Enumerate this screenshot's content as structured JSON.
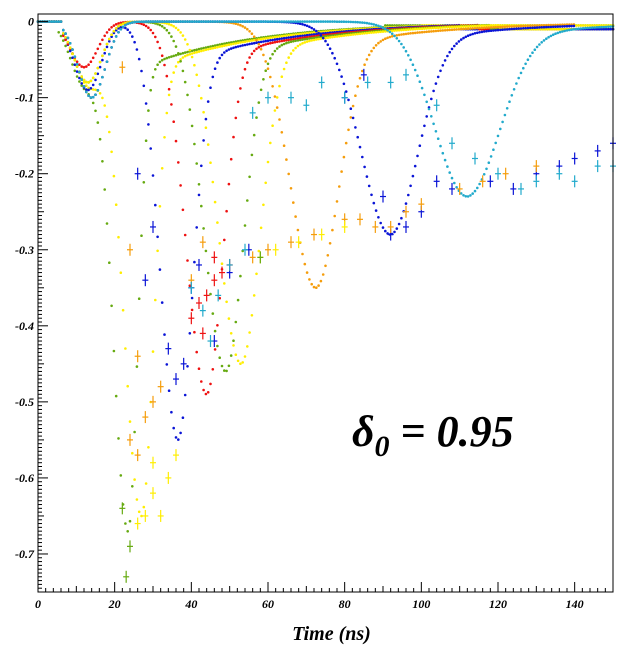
{
  "chart_data": {
    "type": "scatter",
    "title": "",
    "xlabel": "Time (ns)",
    "ylabel": "",
    "xlim": [
      0,
      150
    ],
    "ylim": [
      -0.75,
      0.01
    ],
    "x_ticks": [
      "0",
      "20",
      "40",
      "60",
      "80",
      "100",
      "120",
      "140"
    ],
    "y_ticks": [
      "0",
      "-0.1",
      "-0.2",
      "-0.3",
      "-0.4",
      "-0.5",
      "-0.6",
      "-0.7"
    ],
    "annotation": {
      "symbol": "δ",
      "subscript": "0",
      "rest": " = 0.95"
    },
    "grid": false,
    "legend": "none",
    "series": [
      {
        "color": "#66aa11",
        "start": 5,
        "pulse_t": 12,
        "pulse_depth": -0.08,
        "peak_t": 23.5,
        "peak": -0.67,
        "width_l": 5.5,
        "width_r": 3.5,
        "end": 90,
        "tail": -0.005
      },
      {
        "color": "#ffee00",
        "start": 6,
        "pulse_t": 13,
        "pulse_depth": -0.08,
        "peak_t": 27,
        "peak": -0.65,
        "width_l": 6.5,
        "width_r": 4.5,
        "end": 100,
        "tail": -0.005
      },
      {
        "color": "#0a14d6",
        "start": 6,
        "pulse_t": 13,
        "pulse_depth": -0.09,
        "peak_t": 36.5,
        "peak": -0.55,
        "width_l": 6.5,
        "width_r": 5.5,
        "end": 110,
        "tail": -0.01
      },
      {
        "color": "#ee1111",
        "start": 6,
        "pulse_t": 12,
        "pulse_depth": -0.06,
        "peak_t": 44,
        "peak": -0.49,
        "width_l": 7.5,
        "width_r": 6.0,
        "end": 115,
        "tail": -0.01
      },
      {
        "color": "#66aa11",
        "start": 6,
        "pulse_t": 13,
        "pulse_depth": -0.08,
        "peak_t": 49,
        "peak": -0.46,
        "width_l": 8.0,
        "width_r": 6.5,
        "end": 118,
        "tail": -0.01
      },
      {
        "color": "#ffee00",
        "start": 6,
        "pulse_t": 13,
        "pulse_depth": -0.08,
        "peak_t": 53,
        "peak": -0.45,
        "width_l": 8.5,
        "width_r": 7.0,
        "end": 120,
        "tail": -0.01
      },
      {
        "color": "#f59d0c",
        "start": 6,
        "pulse_t": 14,
        "pulse_depth": -0.1,
        "peak_t": 72.5,
        "peak": -0.35,
        "width_l": 9.5,
        "width_r": 8.5,
        "end": 140,
        "tail": -0.01
      },
      {
        "color": "#0a14d6",
        "start": 6,
        "pulse_t": 14,
        "pulse_depth": -0.1,
        "peak_t": 92,
        "peak": -0.28,
        "width_l": 11,
        "width_r": 10,
        "end": 140,
        "tail": -0.01
      },
      {
        "color": "#22aacc",
        "start": 6,
        "pulse_t": 14,
        "pulse_depth": -0.1,
        "peak_t": 112,
        "peak": -0.23,
        "width_l": 12,
        "width_r": 12,
        "end": 150,
        "tail": -0.01
      }
    ],
    "scatter_hits": [
      {
        "color": "#0a14d6",
        "points": [
          [
            34,
            -0.43
          ],
          [
            36,
            -0.47
          ],
          [
            38,
            -0.45
          ],
          [
            40,
            -0.35
          ],
          [
            42,
            -0.32
          ],
          [
            46,
            -0.42
          ],
          [
            50,
            -0.33
          ],
          [
            55,
            -0.3
          ],
          [
            28,
            -0.34
          ],
          [
            26,
            -0.2
          ],
          [
            30,
            -0.27
          ],
          [
            100,
            -0.25
          ],
          [
            96,
            -0.27
          ],
          [
            104,
            -0.21
          ],
          [
            108,
            -0.22
          ],
          [
            118,
            -0.21
          ],
          [
            124,
            -0.22
          ],
          [
            130,
            -0.2
          ],
          [
            136,
            -0.19
          ],
          [
            140,
            -0.18
          ],
          [
            146,
            -0.17
          ],
          [
            150,
            -0.16
          ],
          [
            92,
            -0.28
          ],
          [
            90,
            -0.23
          ],
          [
            80,
            -0.1
          ],
          [
            85,
            -0.07
          ]
        ]
      },
      {
        "color": "#f59d0c",
        "points": [
          [
            24,
            -0.55
          ],
          [
            26,
            -0.57
          ],
          [
            28,
            -0.52
          ],
          [
            30,
            -0.5
          ],
          [
            32,
            -0.48
          ],
          [
            26,
            -0.44
          ],
          [
            24,
            -0.3
          ],
          [
            22,
            -0.06
          ],
          [
            40,
            -0.34
          ],
          [
            43,
            -0.29
          ],
          [
            56,
            -0.31
          ],
          [
            60,
            -0.3
          ],
          [
            66,
            -0.29
          ],
          [
            72,
            -0.28
          ],
          [
            80,
            -0.26
          ],
          [
            84,
            -0.26
          ],
          [
            88,
            -0.27
          ],
          [
            92,
            -0.27
          ],
          [
            96,
            -0.25
          ],
          [
            100,
            -0.24
          ],
          [
            110,
            -0.22
          ],
          [
            116,
            -0.21
          ],
          [
            122,
            -0.2
          ],
          [
            130,
            -0.19
          ]
        ]
      },
      {
        "color": "#ffee00",
        "points": [
          [
            26,
            -0.66
          ],
          [
            28,
            -0.65
          ],
          [
            30,
            -0.62
          ],
          [
            32,
            -0.65
          ],
          [
            34,
            -0.6
          ],
          [
            36,
            -0.57
          ],
          [
            30,
            -0.58
          ],
          [
            58,
            -0.31
          ],
          [
            62,
            -0.3
          ],
          [
            68,
            -0.29
          ],
          [
            74,
            -0.28
          ],
          [
            80,
            -0.27
          ]
        ]
      },
      {
        "color": "#66aa11",
        "points": [
          [
            23,
            -0.73
          ],
          [
            24,
            -0.69
          ],
          [
            22,
            -0.64
          ],
          [
            58,
            -0.31
          ]
        ]
      },
      {
        "color": "#ee1111",
        "points": [
          [
            40,
            -0.39
          ],
          [
            42,
            -0.37
          ],
          [
            44,
            -0.36
          ],
          [
            46,
            -0.34
          ],
          [
            48,
            -0.33
          ],
          [
            50,
            -0.32
          ],
          [
            46,
            -0.31
          ],
          [
            43,
            -0.41
          ]
        ]
      },
      {
        "color": "#22aacc",
        "points": [
          [
            40,
            -0.35
          ],
          [
            43,
            -0.38
          ],
          [
            45,
            -0.42
          ],
          [
            47,
            -0.36
          ],
          [
            50,
            -0.32
          ],
          [
            54,
            -0.3
          ],
          [
            56,
            -0.12
          ],
          [
            60,
            -0.1
          ],
          [
            66,
            -0.1
          ],
          [
            70,
            -0.11
          ],
          [
            74,
            -0.08
          ],
          [
            80,
            -0.1
          ],
          [
            86,
            -0.08
          ],
          [
            92,
            -0.08
          ],
          [
            96,
            -0.07
          ],
          [
            104,
            -0.11
          ],
          [
            108,
            -0.16
          ],
          [
            114,
            -0.18
          ],
          [
            120,
            -0.2
          ],
          [
            126,
            -0.22
          ],
          [
            130,
            -0.21
          ],
          [
            136,
            -0.2
          ],
          [
            140,
            -0.21
          ],
          [
            146,
            -0.19
          ],
          [
            150,
            -0.19
          ]
        ]
      }
    ]
  }
}
